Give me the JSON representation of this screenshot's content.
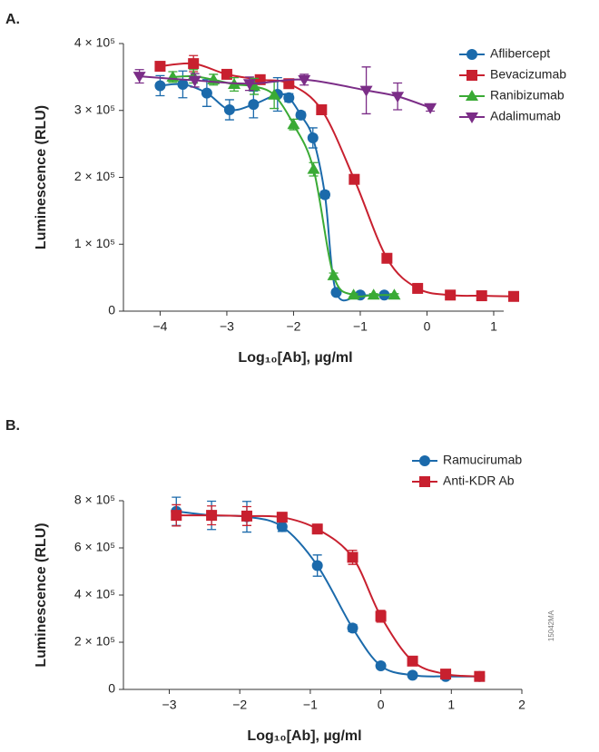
{
  "chart_data": [
    {
      "type": "scatter",
      "panel_label": "A.",
      "ylabel": "Luminescence (RLU)",
      "xlabel": "Log₁₀[Ab], µg/ml",
      "xlim": [
        -4.55,
        1.15
      ],
      "xticks": [
        {
          "value": -4,
          "label": "−4"
        },
        {
          "value": -3,
          "label": "−3"
        },
        {
          "value": -2,
          "label": "−2"
        },
        {
          "value": -1,
          "label": "−1"
        },
        0,
        1
      ],
      "ylim": [
        0,
        400000
      ],
      "yticks": [
        0,
        {
          "value": 100000,
          "label": "1 × 10⁵"
        },
        {
          "value": 200000,
          "label": "2 × 10⁵"
        },
        {
          "value": 300000,
          "label": "3 × 10⁵"
        },
        {
          "value": 400000,
          "label": "4 × 10⁵"
        }
      ],
      "legend": "top-right",
      "series": [
        {
          "name": "Aflibercept",
          "color": "#1b6aab",
          "marker": "circle",
          "x": [
            -4,
            -3.66,
            -3.3,
            -2.96,
            -2.6,
            -2.24,
            -2.07,
            -1.89,
            -1.71,
            -1.53,
            -1.36,
            -1.0,
            -0.64
          ],
          "values": [
            337000,
            339000,
            326000,
            301000,
            309000,
            324000,
            319000,
            293000,
            259000,
            174000,
            28000,
            24000,
            24000
          ],
          "errors": [
            15000,
            20000,
            20000,
            15000,
            20000,
            25000,
            6000,
            5000,
            15000,
            5000,
            2000,
            2000,
            2000
          ]
        },
        {
          "name": "Bevacizumab",
          "color": "#c8202f",
          "marker": "square",
          "x": [
            -4,
            -3.5,
            -3.0,
            -2.5,
            -2.07,
            -1.58,
            -1.09,
            -0.6,
            -0.14,
            0.35,
            0.82,
            1.3
          ],
          "values": [
            366000,
            370000,
            354000,
            346000,
            340000,
            301000,
            197000,
            79000,
            34000,
            24000,
            23000,
            22000
          ],
          "errors": [
            6000,
            12000,
            6000,
            6000,
            5000,
            5000,
            5000,
            4000,
            3000,
            2000,
            2000,
            2000
          ]
        },
        {
          "name": "Ranibizumab",
          "color": "#3aaa35",
          "marker": "triangle-up",
          "x": [
            -3.81,
            -3.5,
            -3.2,
            -2.89,
            -2.59,
            -2.29,
            -2.0,
            -1.7,
            -1.4,
            -1.1,
            -0.8,
            -0.49
          ],
          "values": [
            350000,
            351000,
            346000,
            339000,
            336000,
            323000,
            279000,
            212000,
            53000,
            24000,
            24000,
            24000
          ],
          "errors": [
            8000,
            10000,
            8000,
            10000,
            12000,
            20000,
            8000,
            10000,
            4000,
            2000,
            2000,
            2000
          ]
        },
        {
          "name": "Adalimumab",
          "color": "#7b2d87",
          "marker": "triangle-down",
          "x": [
            -4.31,
            -3.48,
            -2.66,
            -1.84,
            -0.91,
            -0.44,
            0.05
          ],
          "values": [
            351000,
            345000,
            340000,
            346000,
            330000,
            321000,
            304000
          ],
          "errors": [
            10000,
            10000,
            10000,
            8000,
            35000,
            20000,
            5000
          ]
        }
      ]
    },
    {
      "type": "scatter",
      "panel_label": "B.",
      "ylabel": "Luminescence (RLU)",
      "xlabel": "Log₁₀[Ab], µg/ml",
      "xlim": [
        -3.65,
        2
      ],
      "xticks": [
        {
          "value": -3,
          "label": "−3"
        },
        {
          "value": -2,
          "label": "−2"
        },
        {
          "value": -1,
          "label": "−1"
        },
        0,
        1,
        2
      ],
      "ylim": [
        0,
        800000
      ],
      "yticks": [
        0,
        {
          "value": 200000,
          "label": "2 × 10⁵"
        },
        {
          "value": 400000,
          "label": "4 × 10⁵"
        },
        {
          "value": 600000,
          "label": "6 × 10⁵"
        },
        {
          "value": 800000,
          "label": "8 × 10⁵"
        }
      ],
      "legend": "top-right",
      "series": [
        {
          "name": "Ramucirumab",
          "color": "#1b6aab",
          "marker": "circle",
          "x": [
            -2.9,
            -2.4,
            -1.9,
            -1.4,
            -0.9,
            -0.4,
            0.0,
            0.45,
            0.92,
            1.4
          ],
          "values": [
            755000,
            738000,
            732000,
            690000,
            525000,
            260000,
            100000,
            60000,
            55000,
            55000
          ],
          "errors": [
            60000,
            60000,
            65000,
            20000,
            45000,
            15000,
            5000,
            3000,
            5000,
            3000
          ]
        },
        {
          "name": "Anti-KDR Ab",
          "color": "#c8202f",
          "marker": "square",
          "x": [
            -2.9,
            -2.4,
            -1.9,
            -1.4,
            -0.9,
            -0.4,
            0.0,
            0.45,
            0.92,
            1.4
          ],
          "values": [
            738000,
            738000,
            735000,
            730000,
            680000,
            560000,
            310000,
            120000,
            65000,
            55000
          ],
          "errors": [
            45000,
            40000,
            40000,
            20000,
            20000,
            30000,
            25000,
            5000,
            5000,
            5000
          ]
        }
      ]
    }
  ],
  "figure_id": "15042MA"
}
